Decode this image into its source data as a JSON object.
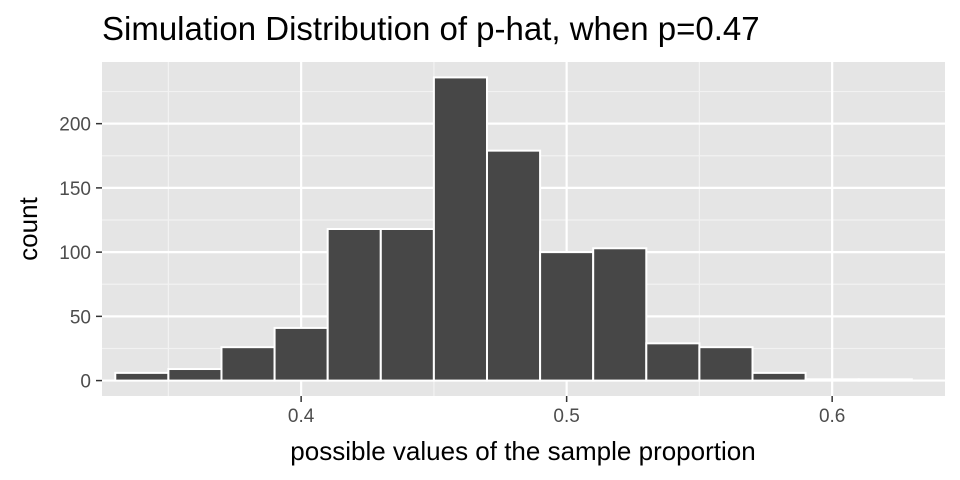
{
  "colors": {
    "panel_background": "#e5e5e5",
    "grid_major": "#ffffff",
    "grid_minor": "#f2f2f2",
    "bar_fill": "#474747",
    "bar_outline": "#ffffff",
    "tick_color": "#333333"
  },
  "chart_data": {
    "type": "bar",
    "subtype": "histogram",
    "title": "Simulation Distribution of p-hat, when p=0.47",
    "xlabel": "possible values of the sample proportion",
    "ylabel": "count",
    "xlim": [
      0.325,
      0.6425
    ],
    "ylim": [
      -12,
      248
    ],
    "x_ticks": [
      0.4,
      0.5,
      0.6
    ],
    "x_tick_labels": [
      "0.4",
      "0.5",
      "0.6"
    ],
    "y_ticks": [
      0,
      50,
      100,
      150,
      200
    ],
    "y_tick_labels": [
      "0",
      "50",
      "100",
      "150",
      "200"
    ],
    "grid": true,
    "legend": "none",
    "bins": [
      {
        "x_min": 0.33,
        "x_max": 0.35,
        "count": 6
      },
      {
        "x_min": 0.35,
        "x_max": 0.37,
        "count": 9
      },
      {
        "x_min": 0.37,
        "x_max": 0.39,
        "count": 26
      },
      {
        "x_min": 0.39,
        "x_max": 0.41,
        "count": 41
      },
      {
        "x_min": 0.41,
        "x_max": 0.43,
        "count": 118
      },
      {
        "x_min": 0.43,
        "x_max": 0.45,
        "count": 118
      },
      {
        "x_min": 0.45,
        "x_max": 0.47,
        "count": 236
      },
      {
        "x_min": 0.47,
        "x_max": 0.49,
        "count": 179
      },
      {
        "x_min": 0.49,
        "x_max": 0.51,
        "count": 100
      },
      {
        "x_min": 0.51,
        "x_max": 0.53,
        "count": 103
      },
      {
        "x_min": 0.53,
        "x_max": 0.55,
        "count": 29
      },
      {
        "x_min": 0.55,
        "x_max": 0.57,
        "count": 26
      },
      {
        "x_min": 0.57,
        "x_max": 0.59,
        "count": 6
      },
      {
        "x_min": 0.59,
        "x_max": 0.61,
        "count": 1
      },
      {
        "x_min": 0.61,
        "x_max": 0.63,
        "count": 1
      }
    ]
  }
}
